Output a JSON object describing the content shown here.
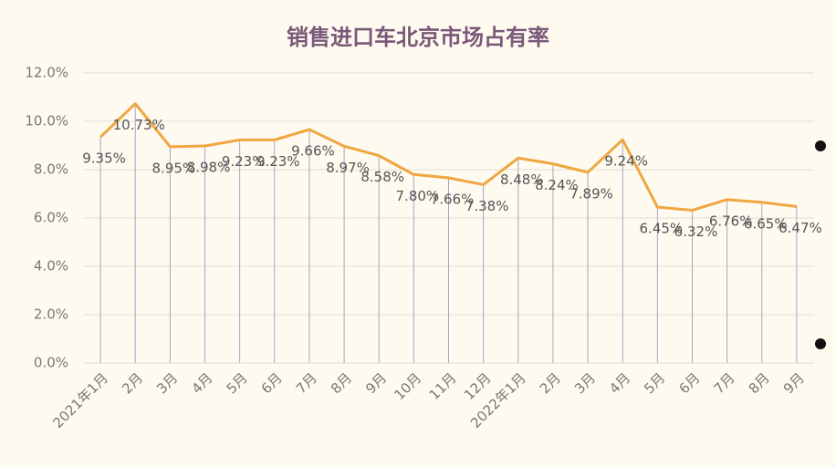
{
  "chart_data": {
    "type": "line",
    "title": "销售进口车北京市场占有率",
    "categories": [
      "2021年1月",
      "2月",
      "3月",
      "4月",
      "5月",
      "6月",
      "7月",
      "8月",
      "9月",
      "10月",
      "11月",
      "12月",
      "2022年1月",
      "2月",
      "3月",
      "4月",
      "5月",
      "6月",
      "7月",
      "8月",
      "9月"
    ],
    "values": [
      9.35,
      10.73,
      8.95,
      8.98,
      9.23,
      9.23,
      9.66,
      8.97,
      8.58,
      7.8,
      7.66,
      7.38,
      8.48,
      8.24,
      7.89,
      9.24,
      6.45,
      6.32,
      6.76,
      6.65,
      6.47
    ],
    "value_labels": [
      "9.35%",
      "10.73%",
      "8.95%",
      "8.98%",
      "9.23%",
      "9.23%",
      "9.66%",
      "8.97%",
      "8.58%",
      "7.80%",
      "7.66%",
      "7.38%",
      "8.48%",
      "8.24%",
      "7.89%",
      "9.24%",
      "6.45%",
      "6.32%",
      "6.76%",
      "6.65%",
      "6.47%"
    ],
    "color": "#f0a640",
    "ylim": [
      0,
      12
    ],
    "yticks": [
      {
        "value": 0,
        "label": "0.0%"
      },
      {
        "value": 2,
        "label": "2.0%"
      },
      {
        "value": 4,
        "label": "4.0%"
      },
      {
        "value": 6,
        "label": "6.0%"
      },
      {
        "value": 8,
        "label": "8.0%"
      },
      {
        "value": 10,
        "label": "10.0%"
      },
      {
        "value": 12,
        "label": "12.0%"
      }
    ],
    "grid": true,
    "drop_lines": true
  }
}
